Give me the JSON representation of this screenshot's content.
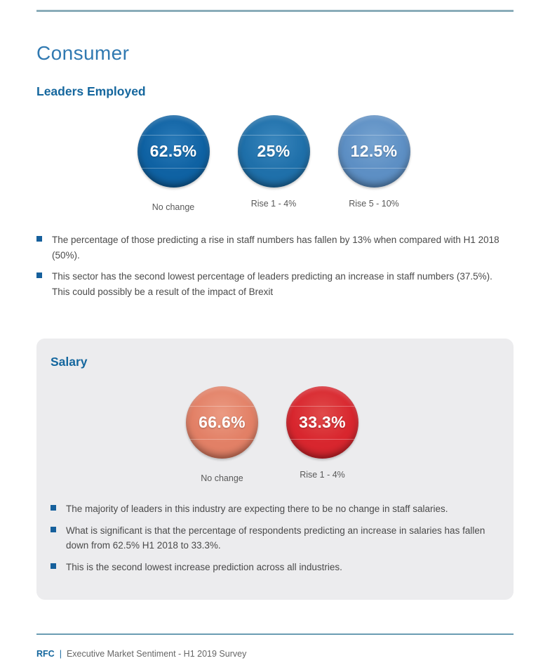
{
  "page": {
    "title": "Consumer"
  },
  "colors": {
    "title-blue": "#3079b1",
    "heading-blue": "#15679e",
    "bullet-blue": "#16609c",
    "text-gray": "#4a4a4a",
    "label-gray": "#595959",
    "rule-top": "#8aacb9",
    "rule-footer": "#6b9cb3",
    "box-bg": "#ececee"
  },
  "leaders": {
    "heading": "Leaders Employed",
    "circles": [
      {
        "value": "62.5%",
        "label": "No change",
        "color": "#0f62a3",
        "edge_color": "#0b426e",
        "highlight_color": "#2a7ab8"
      },
      {
        "value": "25%",
        "label": "Rise 1 - 4%",
        "color": "#1f70aa",
        "edge_color": "#10507e",
        "highlight_color": "#3a86bd"
      },
      {
        "value": "12.5%",
        "label": "Rise 5 - 10%",
        "color": "#5d8fc4",
        "edge_color": "#44719e",
        "highlight_color": "#76a3d0"
      }
    ],
    "bullets": [
      "The percentage of those predicting a rise in staff numbers has fallen by 13% when compared with H1 2018 (50%).",
      "This sector has the second lowest percentage of leaders predicting an increase in staff numbers (37.5%). This could possibly be a result of the impact of Brexit"
    ]
  },
  "salary": {
    "heading": "Salary",
    "circles": [
      {
        "value": "66.6%",
        "label": "No change",
        "color": "#e28066",
        "edge_color": "#b55a3d",
        "highlight_color": "#eb9a82"
      },
      {
        "value": "33.3%",
        "label": "Rise 1 - 4%",
        "color": "#d8262e",
        "edge_color": "#9e1418",
        "highlight_color": "#e04a4a"
      }
    ],
    "bullets": [
      "The majority of leaders in this industry are expecting there to be no change in staff salaries.",
      "What is  significant is that the percentage of respondents predicting an increase in salaries has fallen down from 62.5% H1 2018 to 33.3%.",
      "This is the second lowest increase prediction across all industries."
    ]
  },
  "footer": {
    "brand": "RFC",
    "separator": "|",
    "text": "Executive Market Sentiment - H1 2019 Survey"
  },
  "chart_data": [
    {
      "type": "pie",
      "title": "Leaders Employed",
      "categories": [
        "No change",
        "Rise 1 - 4%",
        "Rise 5 - 10%"
      ],
      "values": [
        62.5,
        25,
        12.5
      ],
      "unit": "%"
    },
    {
      "type": "pie",
      "title": "Salary",
      "categories": [
        "No change",
        "Rise 1 - 4%"
      ],
      "values": [
        66.6,
        33.3
      ],
      "unit": "%"
    }
  ]
}
